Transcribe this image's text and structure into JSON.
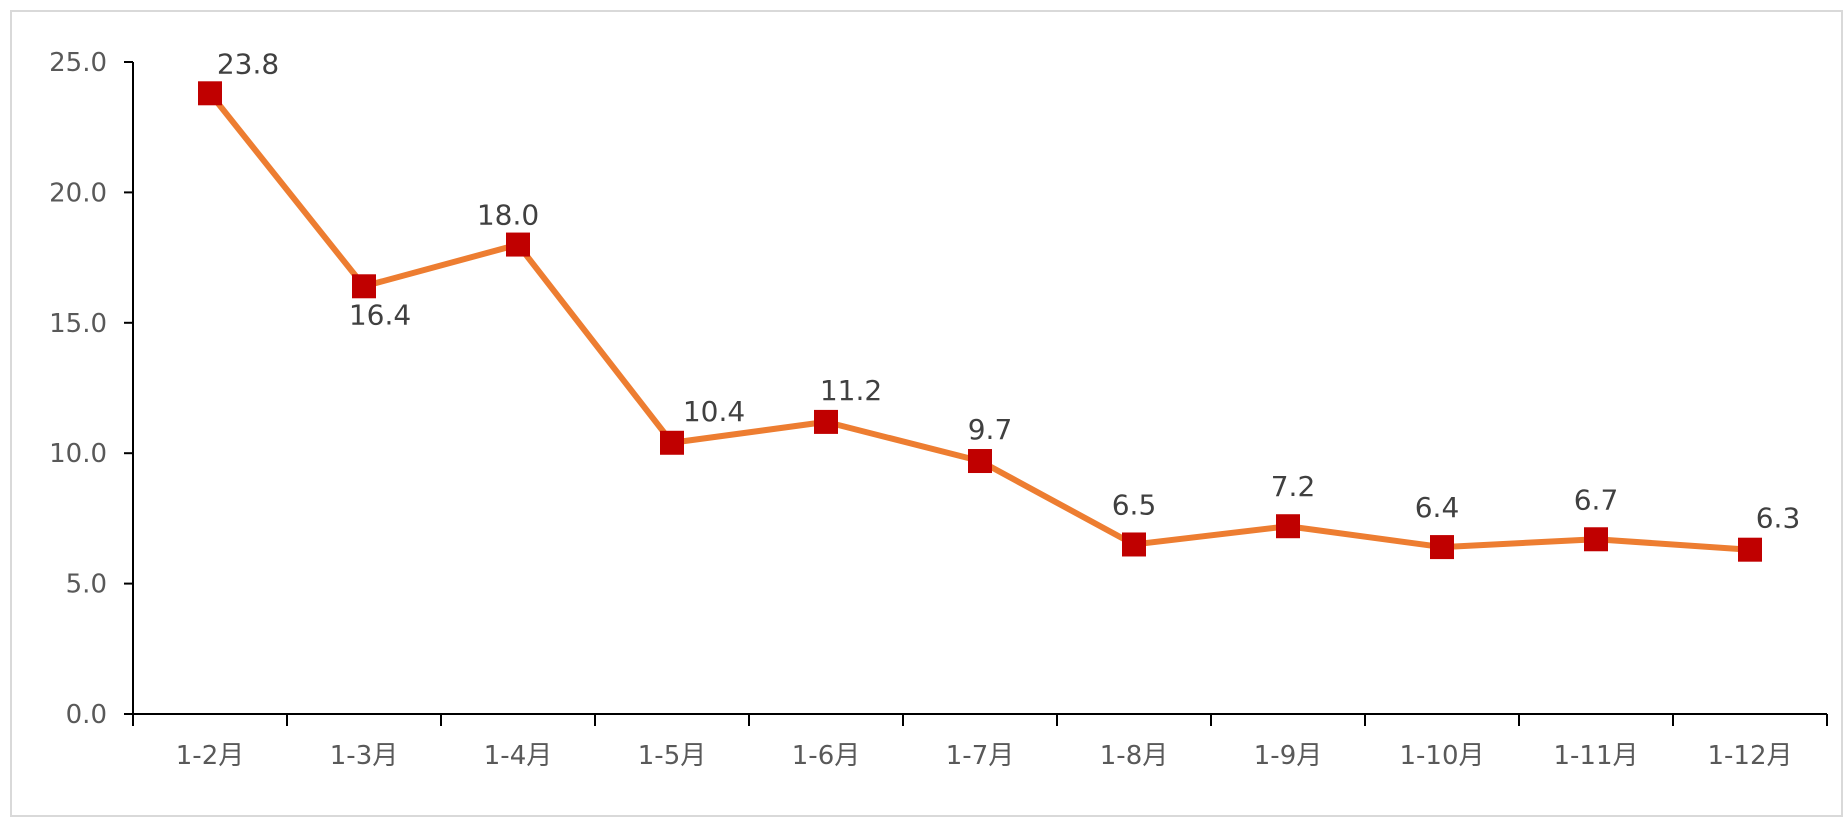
{
  "chart_data": {
    "type": "line",
    "categories": [
      "1-2月",
      "1-3月",
      "1-4月",
      "1-5月",
      "1-6月",
      "1-7月",
      "1-8月",
      "1-9月",
      "1-10月",
      "1-11月",
      "1-12月"
    ],
    "series": [
      {
        "values": [
          23.8,
          16.4,
          18.0,
          10.4,
          11.2,
          9.7,
          6.5,
          7.2,
          6.4,
          6.7,
          6.3
        ],
        "data_labels": [
          "23.8",
          "16.4",
          "18.0",
          "10.4",
          "11.2",
          "9.7",
          "6.5",
          "7.2",
          "6.4",
          "6.7",
          "6.3"
        ],
        "line_color": "#ED7D31",
        "marker_color": "#C00000",
        "marker": "square"
      }
    ],
    "yticks": [
      "0.0",
      "5.0",
      "10.0",
      "15.0",
      "20.0",
      "25.0"
    ],
    "ylim": [
      0,
      25
    ],
    "grid": false,
    "legend": "none",
    "title": "",
    "xlabel": "",
    "ylabel": ""
  }
}
